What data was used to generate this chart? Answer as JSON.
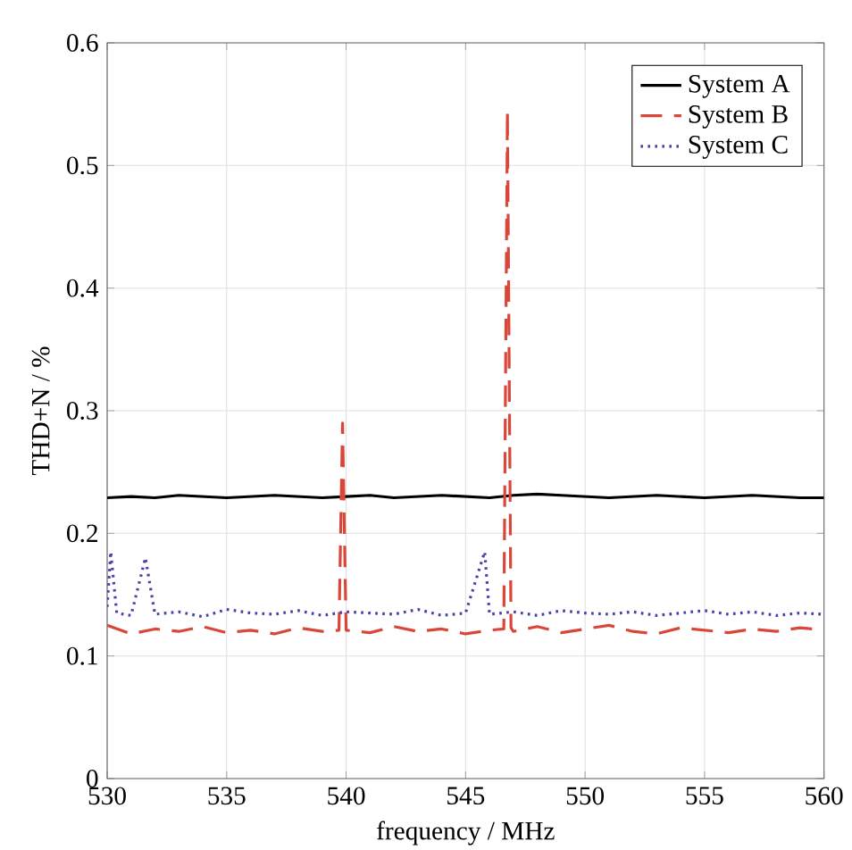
{
  "chart_data": {
    "type": "line",
    "xlabel": "frequency / MHz",
    "ylabel": "THD+N / %",
    "xlim": [
      530,
      560
    ],
    "ylim": [
      0,
      0.6
    ],
    "xticks": [
      530,
      535,
      540,
      545,
      550,
      555,
      560
    ],
    "yticks": [
      0,
      0.1,
      0.2,
      0.3,
      0.4,
      0.5,
      0.6
    ],
    "grid": true,
    "legend": "top right",
    "series": [
      {
        "name": "System A",
        "color": "#000000",
        "line_style": "solid",
        "x": [
          530,
          531,
          532,
          533,
          534,
          535,
          536,
          537,
          538,
          539,
          540,
          541,
          542,
          543,
          544,
          545,
          546,
          547,
          548,
          549,
          550,
          551,
          552,
          553,
          554,
          555,
          556,
          557,
          558,
          559,
          560
        ],
        "values": [
          0.229,
          0.23,
          0.229,
          0.231,
          0.23,
          0.229,
          0.23,
          0.231,
          0.23,
          0.229,
          0.23,
          0.231,
          0.229,
          0.23,
          0.231,
          0.23,
          0.229,
          0.231,
          0.232,
          0.231,
          0.23,
          0.229,
          0.23,
          0.231,
          0.23,
          0.229,
          0.23,
          0.231,
          0.23,
          0.229,
          0.229
        ]
      },
      {
        "name": "System B",
        "color": "#d9473a",
        "line_style": "dashed",
        "x": [
          530,
          531,
          532,
          533,
          534,
          535,
          536,
          537,
          538,
          539,
          539.7,
          539.85,
          540,
          541,
          542,
          543,
          544,
          545,
          546,
          546.6,
          546.75,
          546.9,
          547,
          548,
          549,
          550,
          551,
          552,
          553,
          554,
          555,
          556,
          557,
          558,
          559,
          560
        ],
        "values": [
          0.125,
          0.118,
          0.122,
          0.12,
          0.124,
          0.119,
          0.121,
          0.118,
          0.123,
          0.12,
          0.121,
          0.29,
          0.121,
          0.119,
          0.124,
          0.12,
          0.122,
          0.118,
          0.121,
          0.122,
          0.545,
          0.123,
          0.12,
          0.124,
          0.119,
          0.122,
          0.125,
          0.12,
          0.118,
          0.123,
          0.121,
          0.119,
          0.122,
          0.12,
          0.123,
          0.121
        ]
      },
      {
        "name": "System C",
        "color": "#4b3fa8",
        "line_style": "dotted",
        "x": [
          530,
          530.15,
          530.4,
          531,
          531.6,
          532,
          533,
          534,
          535,
          536,
          537,
          538,
          539,
          540,
          541,
          542,
          543,
          544,
          545,
          545.8,
          546,
          547,
          548,
          549,
          550,
          551,
          552,
          553,
          554,
          555,
          556,
          557,
          558,
          559,
          560
        ],
        "values": [
          0.14,
          0.185,
          0.135,
          0.133,
          0.18,
          0.134,
          0.136,
          0.132,
          0.138,
          0.135,
          0.134,
          0.137,
          0.133,
          0.136,
          0.135,
          0.134,
          0.138,
          0.133,
          0.135,
          0.185,
          0.134,
          0.136,
          0.133,
          0.137,
          0.135,
          0.134,
          0.136,
          0.133,
          0.135,
          0.137,
          0.134,
          0.136,
          0.133,
          0.135,
          0.134
        ]
      }
    ]
  }
}
